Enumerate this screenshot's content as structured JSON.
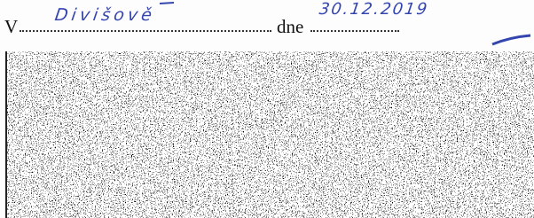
{
  "place_line": {
    "label": "V",
    "value": "Divišově"
  },
  "date_line": {
    "label": "dne",
    "value": "30.12.2019"
  }
}
